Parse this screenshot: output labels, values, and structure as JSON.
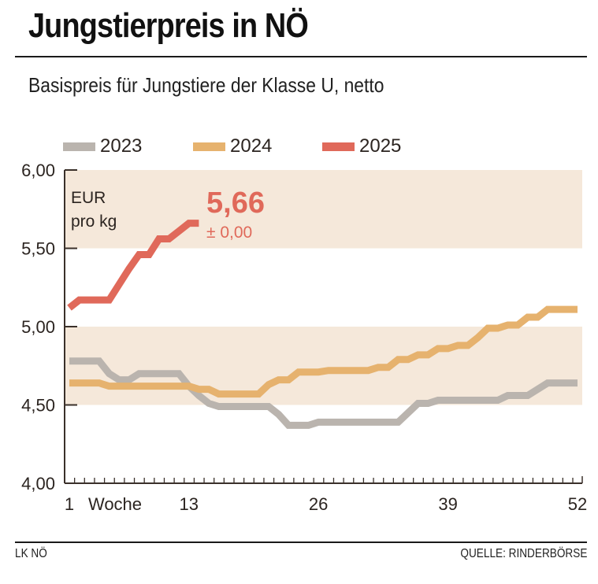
{
  "header": {
    "title": "Jungstierpreis in NÖ",
    "subtitle": "Basispreis für Jungstiere der Klasse U, netto"
  },
  "footer": {
    "left": "LK NÖ",
    "right": "QUELLE: RINDERBÖRSE"
  },
  "colors": {
    "band": "#f5e8da",
    "axis": "#3a302a",
    "s2023": "#bab4ae",
    "s2024": "#e6b26e",
    "s2025": "#e0695a"
  },
  "chart_data": {
    "type": "line",
    "title": "Jungstierpreis in NÖ",
    "subtitle": "Basispreis für Jungstiere der Klasse U, netto",
    "xlabel": "Woche",
    "ylabel": "EUR pro kg",
    "unit_line1": "EUR",
    "unit_line2": "pro kg",
    "xlim": [
      1,
      52
    ],
    "ylim": [
      4.0,
      6.0
    ],
    "x_tick_labels": [
      {
        "week": 1,
        "label": "1"
      },
      {
        "week": 13,
        "label": "13"
      },
      {
        "week": 26,
        "label": "26"
      },
      {
        "week": 39,
        "label": "39"
      },
      {
        "week": 52,
        "label": "52"
      }
    ],
    "x_axis_word": "Woche",
    "y_ticks": [
      {
        "value": 6.0,
        "label": "6,00"
      },
      {
        "value": 5.5,
        "label": "5,50"
      },
      {
        "value": 5.0,
        "label": "5,00"
      },
      {
        "value": 4.5,
        "label": "4,50"
      },
      {
        "value": 4.0,
        "label": "4,00"
      }
    ],
    "shaded_bands": [
      [
        5.5,
        6.0
      ],
      [
        4.5,
        5.0
      ]
    ],
    "grid": false,
    "legend_position": "top",
    "legend": [
      "2023",
      "2024",
      "2025"
    ],
    "highlight": {
      "value": "5,66",
      "change": "± 0,00",
      "series": "2025"
    },
    "series": [
      {
        "name": "2023",
        "color_key": "s2023",
        "weeks": [
          1,
          2,
          3,
          4,
          5,
          6,
          7,
          8,
          9,
          10,
          11,
          12,
          13,
          14,
          15,
          16,
          17,
          18,
          19,
          20,
          21,
          22,
          23,
          24,
          25,
          26,
          27,
          28,
          29,
          30,
          31,
          32,
          33,
          34,
          35,
          36,
          37,
          38,
          39,
          40,
          41,
          42,
          43,
          44,
          45,
          46,
          47,
          48,
          49,
          50,
          51,
          52,
          53
        ],
        "values": [
          4.78,
          4.78,
          4.78,
          4.78,
          4.7,
          4.66,
          4.66,
          4.7,
          4.7,
          4.7,
          4.7,
          4.7,
          4.62,
          4.56,
          4.51,
          4.49,
          4.49,
          4.49,
          4.49,
          4.49,
          4.49,
          4.44,
          4.37,
          4.37,
          4.37,
          4.39,
          4.39,
          4.39,
          4.39,
          4.39,
          4.39,
          4.39,
          4.39,
          4.39,
          4.45,
          4.51,
          4.51,
          4.53,
          4.53,
          4.53,
          4.53,
          4.53,
          4.53,
          4.53,
          4.56,
          4.56,
          4.56,
          4.6,
          4.64,
          4.64,
          4.64,
          4.64,
          4.64
        ]
      },
      {
        "name": "2024",
        "color_key": "s2024",
        "weeks": [
          1,
          2,
          3,
          4,
          5,
          6,
          7,
          8,
          9,
          10,
          11,
          12,
          13,
          14,
          15,
          16,
          17,
          18,
          19,
          20,
          21,
          22,
          23,
          24,
          25,
          26,
          27,
          28,
          29,
          30,
          31,
          32,
          33,
          34,
          35,
          36,
          37,
          38,
          39,
          40,
          41,
          42,
          43,
          44,
          45,
          46,
          47,
          48,
          49,
          50,
          51,
          52
        ],
        "values": [
          4.64,
          4.64,
          4.64,
          4.64,
          4.62,
          4.62,
          4.62,
          4.62,
          4.62,
          4.62,
          4.62,
          4.62,
          4.62,
          4.6,
          4.6,
          4.57,
          4.57,
          4.57,
          4.57,
          4.57,
          4.63,
          4.66,
          4.66,
          4.71,
          4.71,
          4.71,
          4.72,
          4.72,
          4.72,
          4.72,
          4.72,
          4.74,
          4.74,
          4.79,
          4.79,
          4.82,
          4.82,
          4.86,
          4.86,
          4.88,
          4.88,
          4.93,
          4.99,
          4.99,
          5.01,
          5.01,
          5.06,
          5.06,
          5.11,
          5.11,
          5.11,
          5.11
        ]
      },
      {
        "name": "2025",
        "color_key": "s2025",
        "weeks": [
          1,
          2,
          3,
          4,
          5,
          6,
          7,
          8,
          9,
          10,
          11,
          12,
          13,
          14
        ],
        "values": [
          5.12,
          5.17,
          5.17,
          5.17,
          5.17,
          5.27,
          5.37,
          5.46,
          5.46,
          5.56,
          5.56,
          5.61,
          5.66,
          5.66
        ]
      }
    ]
  }
}
